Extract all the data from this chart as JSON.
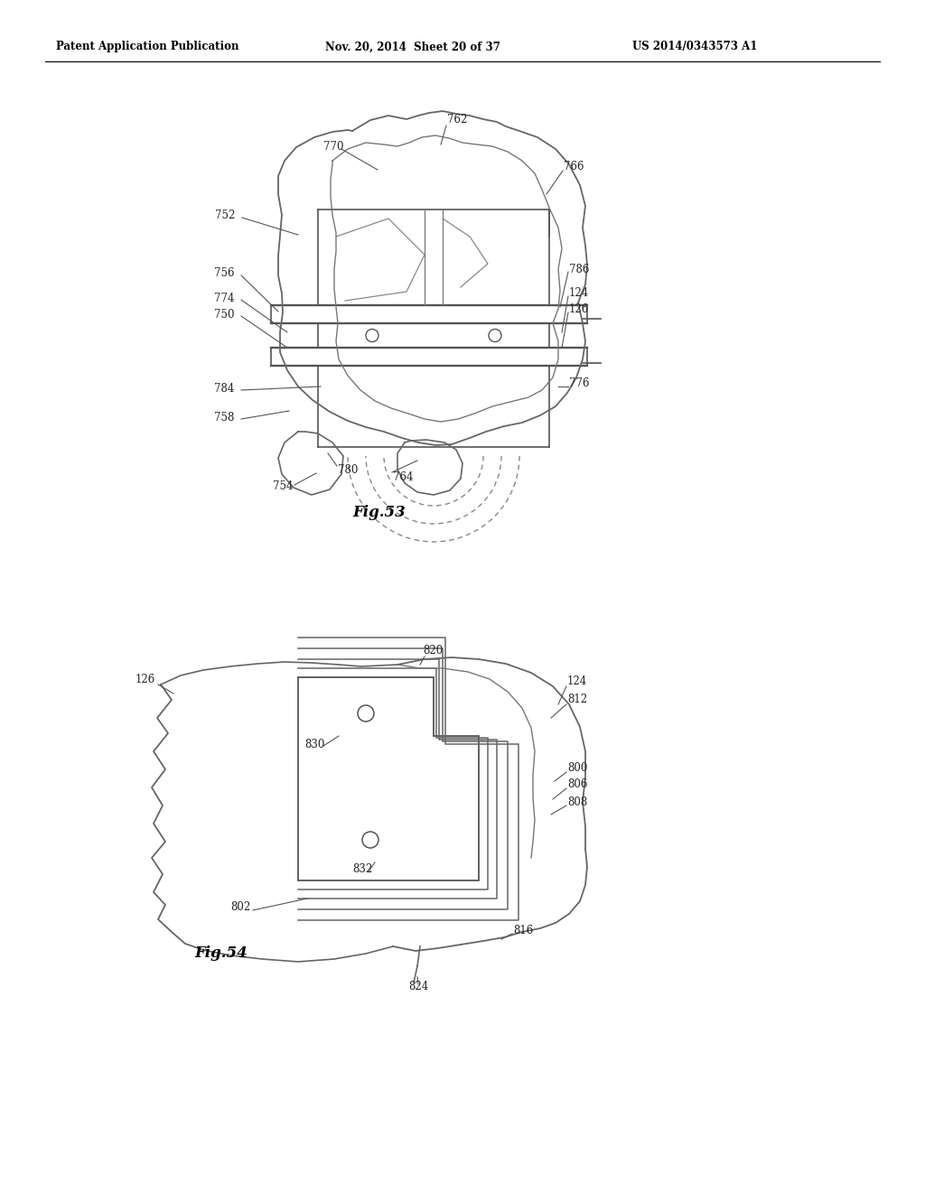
{
  "bg_color": "#ffffff",
  "header_text": "Patent Application Publication",
  "header_date": "Nov. 20, 2014  Sheet 20 of 37",
  "header_patent": "US 2014/0343573 A1",
  "fig53_label": "Fig.53",
  "fig54_label": "Fig.54",
  "line_color": "#555555",
  "lw_main": 1.2
}
